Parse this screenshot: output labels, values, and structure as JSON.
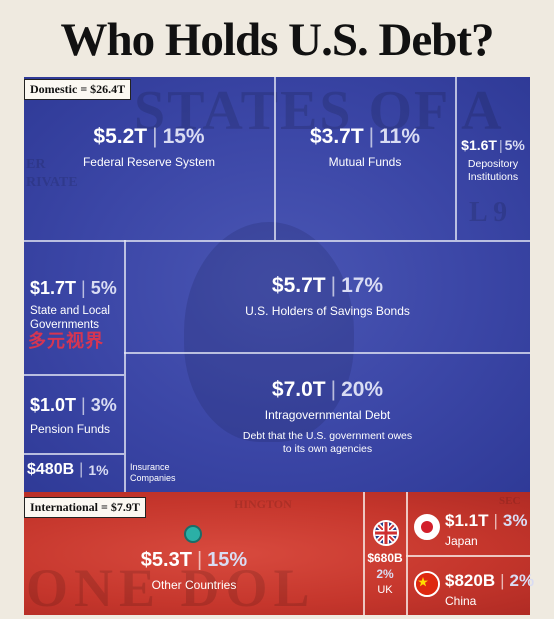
{
  "title": "Who Holds U.S. Debt?",
  "chart_data": {
    "type": "treemap",
    "title": "Who Holds U.S. Debt?",
    "units": "trillion USD",
    "groups": [
      {
        "name": "Domestic",
        "tag": "Domestic = $26.4T",
        "total": 26.4,
        "color": "#3b46a6",
        "items": [
          {
            "label": "Federal Reserve System",
            "value": 5.2,
            "value_text": "$5.2T",
            "pct": 15,
            "pct_text": "15%"
          },
          {
            "label": "Mutual Funds",
            "value": 3.7,
            "value_text": "$3.7T",
            "pct": 11,
            "pct_text": "11%"
          },
          {
            "label": "Depository Institutions",
            "value": 1.6,
            "value_text": "$1.6T",
            "pct": 5,
            "pct_text": "5%"
          },
          {
            "label": "State and Local Governments",
            "value": 1.7,
            "value_text": "$1.7T",
            "pct": 5,
            "pct_text": "5%"
          },
          {
            "label": "U.S. Holders of Savings Bonds",
            "value": 5.7,
            "value_text": "$5.7T",
            "pct": 17,
            "pct_text": "17%"
          },
          {
            "label": "Pension Funds",
            "value": 1.0,
            "value_text": "$1.0T",
            "pct": 3,
            "pct_text": "3%"
          },
          {
            "label": "Intragovernmental Debt",
            "value": 7.0,
            "value_text": "$7.0T",
            "pct": 20,
            "pct_text": "20%",
            "note": "Debt that the U.S. government owes to its own agencies"
          },
          {
            "label": "Insurance Companies",
            "value": 0.48,
            "value_text": "$480B",
            "pct": 1,
            "pct_text": "1%"
          }
        ]
      },
      {
        "name": "International",
        "tag": "International = $7.9T",
        "total": 7.9,
        "color": "#c5362c",
        "items": [
          {
            "label": "Other Countries",
            "value": 5.3,
            "value_text": "$5.3T",
            "pct": 15,
            "pct_text": "15%"
          },
          {
            "label": "UK",
            "value": 0.68,
            "value_text": "$680B",
            "pct": 2,
            "pct_text": "2%"
          },
          {
            "label": "Japan",
            "value": 1.1,
            "value_text": "$1.1T",
            "pct": 3,
            "pct_text": "3%"
          },
          {
            "label": "China",
            "value": 0.82,
            "value_text": "$820B",
            "pct": 2,
            "pct_text": "2%"
          }
        ]
      }
    ]
  },
  "background_text": {
    "bill_top": "STATES OF A",
    "bill_bottom": "ONE DOL",
    "er": "ER",
    "rivate": "RIVATE",
    "l9": "L 9",
    "hington": "HINGTON",
    "sec": "SEC"
  },
  "watermark": "多元视界",
  "colors": {
    "domestic": "#3b46a6",
    "international": "#c5362c",
    "background": "#efeae0"
  }
}
